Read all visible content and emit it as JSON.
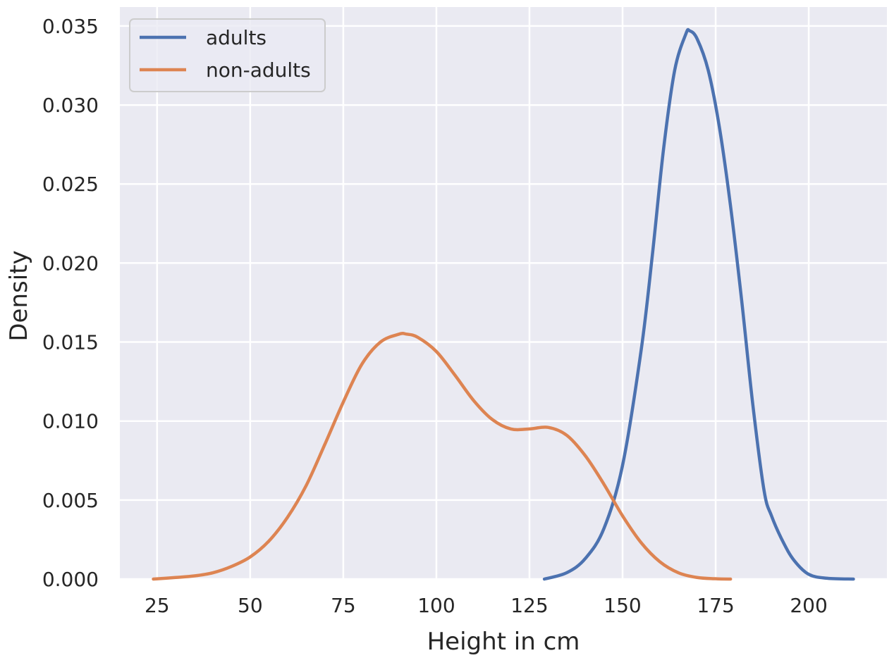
{
  "chart_data": {
    "type": "line",
    "title": "",
    "xlabel": "Height in cm",
    "ylabel": "Density",
    "xlim": [
      15,
      221
    ],
    "ylim": [
      0,
      0.0362
    ],
    "xticks": [
      "25",
      "50",
      "75",
      "100",
      "125",
      "150",
      "175",
      "200"
    ],
    "yticks": [
      "0.000",
      "0.005",
      "0.010",
      "0.015",
      "0.020",
      "0.025",
      "0.030",
      "0.035"
    ],
    "grid": true,
    "legend": "upper left",
    "colors": {
      "background": "#eaeaf2",
      "grid": "#ffffff",
      "adults": "#4c72b0",
      "non_adults": "#dd8452"
    },
    "series": [
      {
        "name": "adults",
        "x": [
          129,
          135,
          140,
          145,
          150,
          155,
          158,
          161,
          164,
          167,
          168,
          170,
          173,
          176,
          179,
          182,
          185,
          188,
          190,
          193,
          196,
          200,
          205,
          212
        ],
        "y": [
          0.0,
          0.0004,
          0.0013,
          0.0032,
          0.0072,
          0.0145,
          0.0205,
          0.0272,
          0.0322,
          0.0345,
          0.0347,
          0.0342,
          0.0322,
          0.0286,
          0.0236,
          0.0176,
          0.011,
          0.0056,
          0.004,
          0.0024,
          0.0012,
          0.0003,
          5e-05,
          0.0
        ]
      },
      {
        "name": "non-adults",
        "x": [
          24,
          30,
          35,
          40,
          45,
          50,
          55,
          60,
          65,
          70,
          75,
          80,
          85,
          90,
          92,
          95,
          100,
          105,
          110,
          115,
          120,
          125,
          130,
          135,
          140,
          145,
          150,
          155,
          160,
          165,
          170,
          175,
          179
        ],
        "y": [
          0.0,
          0.0001,
          0.0002,
          0.0004,
          0.0008,
          0.0014,
          0.0024,
          0.0039,
          0.0059,
          0.0085,
          0.0112,
          0.0136,
          0.015,
          0.0155,
          0.0155,
          0.0153,
          0.0144,
          0.0129,
          0.0113,
          0.0101,
          0.0095,
          0.0095,
          0.0096,
          0.0091,
          0.0078,
          0.006,
          0.004,
          0.0023,
          0.0011,
          0.0004,
          0.0001,
          2e-05,
          0.0
        ]
      }
    ]
  }
}
